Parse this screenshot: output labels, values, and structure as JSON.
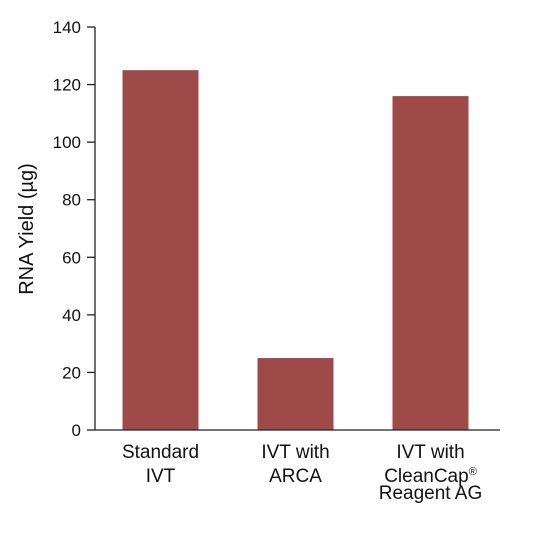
{
  "chart_data": {
    "type": "bar",
    "categories": [
      [
        "Standard",
        "IVT"
      ],
      [
        "IVT with",
        "ARCA"
      ],
      [
        "IVT with",
        "CleanCap®",
        "Reagent AG"
      ]
    ],
    "values": [
      125,
      25,
      116
    ],
    "title": "",
    "xlabel": "",
    "ylabel": "RNA Yield (µg)",
    "ylim": [
      0,
      140
    ],
    "yticks": [
      0,
      20,
      40,
      60,
      80,
      100,
      120,
      140
    ],
    "grid": false,
    "bar_color": "#9e4a49"
  }
}
